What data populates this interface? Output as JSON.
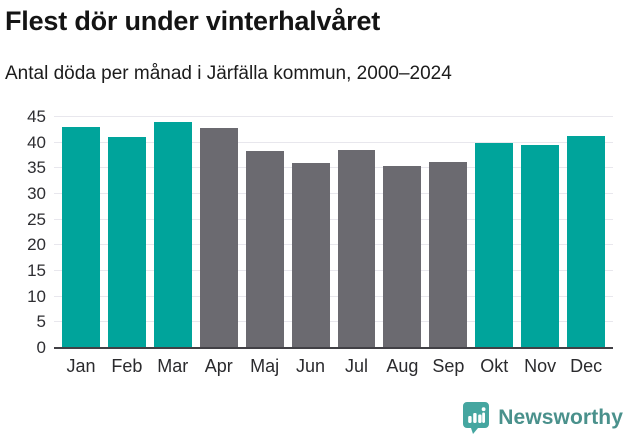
{
  "header": {
    "title": "Flest dör under vinterhalvåret",
    "subtitle": "Antal döda per månad i Järfälla kommun, 2000–2024"
  },
  "chart_data": {
    "type": "bar",
    "title": "Flest dör under vinterhalvåret",
    "subtitle": "Antal döda per månad i Järfälla kommun, 2000–2024",
    "categories": [
      "Jan",
      "Feb",
      "Mar",
      "Apr",
      "Maj",
      "Jun",
      "Jul",
      "Aug",
      "Sep",
      "Okt",
      "Nov",
      "Dec"
    ],
    "values": [
      43.0,
      41.2,
      44.0,
      42.8,
      38.3,
      36.1,
      38.5,
      35.4,
      36.2,
      39.9,
      39.6,
      41.3
    ],
    "bar_color_keys": [
      "winter",
      "winter",
      "winter",
      "summer",
      "summer",
      "summer",
      "summer",
      "summer",
      "summer",
      "winter",
      "winter",
      "winter"
    ],
    "xlabel": "",
    "ylabel": "",
    "ylim": [
      0,
      45
    ],
    "yticks": [
      0,
      5,
      10,
      15,
      20,
      25,
      30,
      35,
      40,
      45
    ],
    "grid": true,
    "legend_position": "none"
  },
  "colors": {
    "winter_bar": "#00a49b",
    "summer_bar": "#6b6a70",
    "gridline": "#e8e7ed",
    "axis_line": "#414045",
    "tick_label": "#2e2e32"
  },
  "footer": {
    "brand": "Newsworthy"
  },
  "icons": {
    "logo": "newsworthy-speech-bubble-bar-chart-icon"
  }
}
